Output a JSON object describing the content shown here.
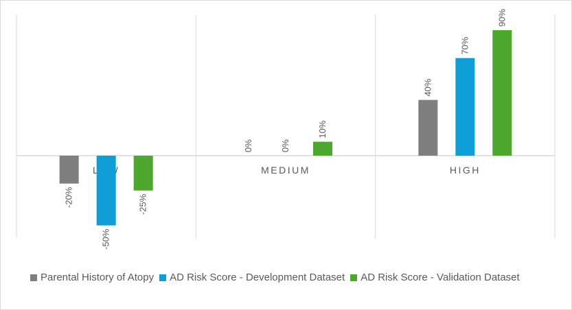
{
  "chart_data": {
    "type": "bar",
    "categories": [
      "LOW",
      "MEDIUM",
      "HIGH"
    ],
    "series": [
      {
        "name": "Parental History of Atopy",
        "color": "#7f7f7f",
        "values": [
          -20,
          0,
          40
        ],
        "labels": [
          "-20%",
          "0%",
          "40%"
        ]
      },
      {
        "name": "AD Risk Score - Development Dataset",
        "color": "#0f9ed5",
        "values": [
          -50,
          0,
          70
        ],
        "labels": [
          "-50%",
          "0%",
          "70%"
        ]
      },
      {
        "name": "AD Risk Score - Validation Dataset",
        "color": "#4ea72e",
        "values": [
          -25,
          10,
          90
        ],
        "labels": [
          "-25%",
          "10%",
          "90%"
        ]
      }
    ],
    "ylim": [
      -60,
      100
    ],
    "unit": "%",
    "grid": "vertical category separators",
    "legend_position": "bottom",
    "title": "",
    "xlabel": "",
    "ylabel": ""
  }
}
